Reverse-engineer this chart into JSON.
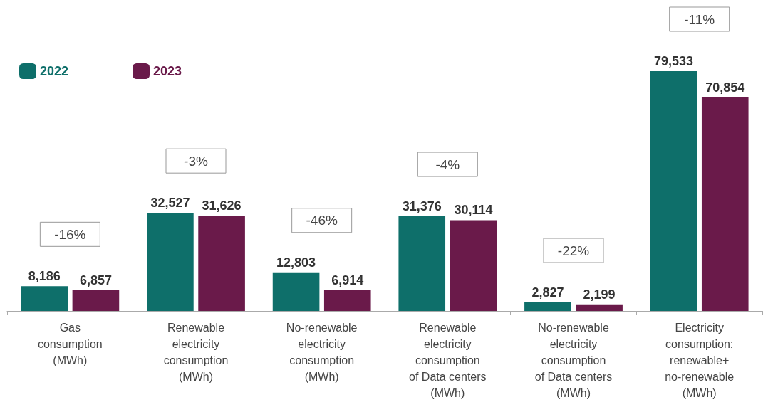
{
  "chart_data": {
    "type": "bar",
    "categories": [
      "Gas\nconsumption\n(MWh)",
      "Renewable\nelectricity\nconsumption\n(MWh)",
      "No-renewable\nelectricity\nconsumption\n(MWh)",
      "Renewable\nelectricity\nconsumption\nof Data centers\n(MWh)",
      "No-renewable\nelectricity\nconsumption\nof Data centers\n(MWh)",
      "Electricity\nconsumption:\nrenewable+\nno-renewable\n(MWh)"
    ],
    "series": [
      {
        "name": "2022",
        "color": "#0e6f6a",
        "values": [
          8186,
          32527,
          12803,
          31376,
          2827,
          79533
        ],
        "value_labels": [
          "8,186",
          "32,527",
          "12,803",
          "31,376",
          "2,827",
          "79,533"
        ]
      },
      {
        "name": "2023",
        "color": "#6a1a4a",
        "values": [
          6857,
          31626,
          6914,
          30114,
          2199,
          70854
        ],
        "value_labels": [
          "6,857",
          "31,626",
          "6,914",
          "30,114",
          "2,199",
          "70,854"
        ]
      }
    ],
    "tick_labels": "x",
    "legend": "top left",
    "grid": false,
    "annotations": [
      "-16%",
      "-3%",
      "-46%",
      "-4%",
      "-22%",
      "-11%"
    ]
  }
}
